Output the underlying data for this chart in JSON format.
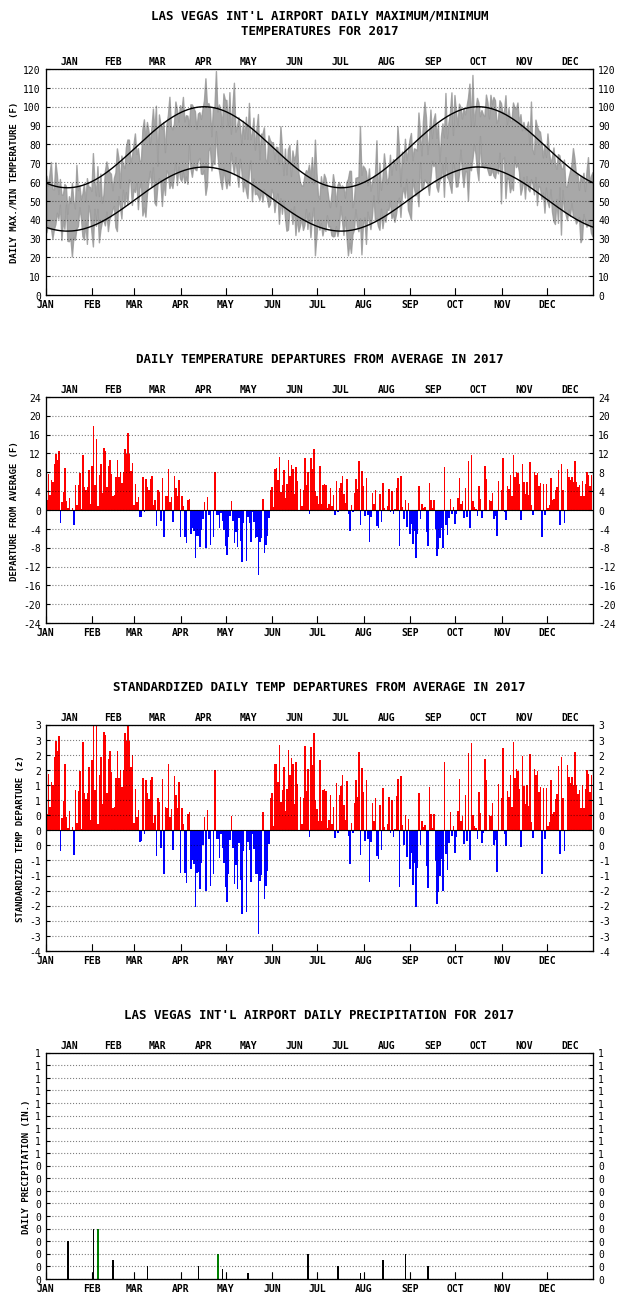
{
  "title1": "LAS VEGAS INT'L AIRPORT DAILY MAXIMUM/MINIMUM\nTEMPERATURES FOR 2017",
  "title2": "DAILY TEMPERATURE DEPARTURES FROM AVERAGE IN 2017",
  "title3": "STANDARDIZED DAILY TEMP DEPARTURES FROM AVERAGE IN 2017",
  "title4": "LAS VEGAS INT'L AIRPORT DAILY PRECIPITATION FOR 2017",
  "ylabel1": "DAILY MAX./MIN TEMPERATURE (F)",
  "ylabel2": "DEPARTURE FROM AVERAGE (F)",
  "ylabel3": "STANDARDIZED TEMP DEPARTURE (z)",
  "ylabel4": "DAILY PRECIPITATION (IN.)",
  "months": [
    "JAN",
    "FEB",
    "MAR",
    "APR",
    "MAY",
    "JUN",
    "JUL",
    "AUG",
    "SEP",
    "OCT",
    "NOV",
    "DEC"
  ],
  "background_color": "#ffffff",
  "fill_color": "#999999",
  "avg_max_color": "#000000",
  "avg_min_color": "#000000",
  "red_color": "#ff0000",
  "blue_color": "#0000ff",
  "green_color": "#008000"
}
